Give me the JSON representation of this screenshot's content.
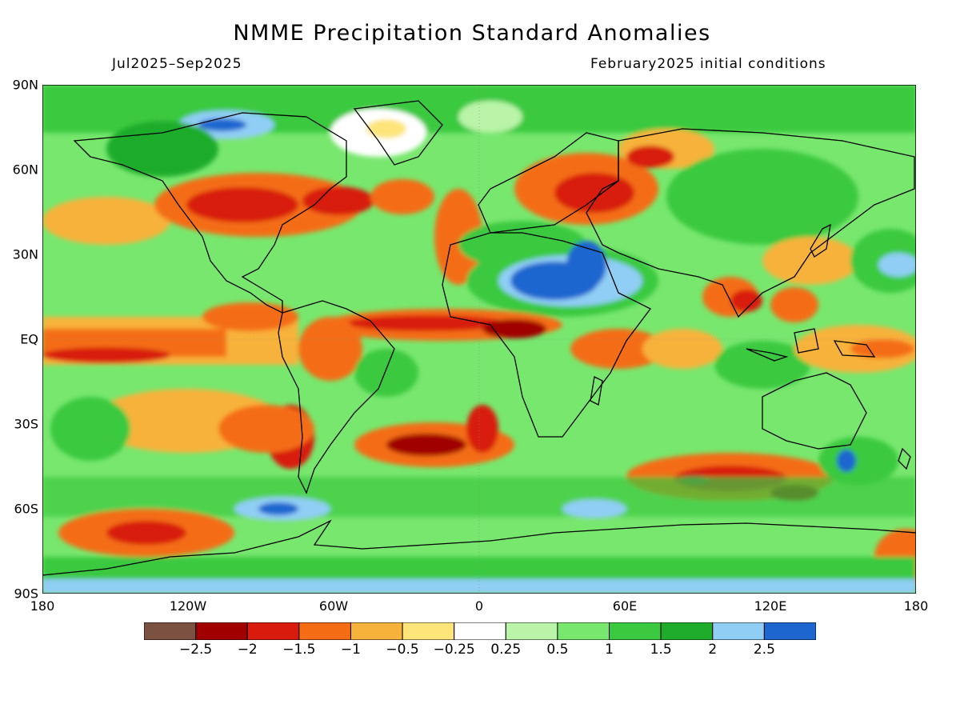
{
  "title": "NMME Precipitation Standard Anomalies",
  "period": "Jul2025–Sep2025",
  "init": "February2025 initial conditions",
  "lat_labels": [
    "90N",
    "60N",
    "30N",
    "EQ",
    "30S",
    "60S",
    "90S"
  ],
  "lon_labels": [
    "180",
    "120W",
    "60W",
    "0",
    "60E",
    "120E",
    "180"
  ],
  "colorbar": {
    "colors": [
      "#7b5142",
      "#a00000",
      "#d81b0c",
      "#f46d15",
      "#f7b23b",
      "#fde57a",
      "#ffffff",
      "#b9f4a9",
      "#78e76e",
      "#3bc940",
      "#1fac2a",
      "#90cef5",
      "#1d66cf"
    ],
    "labels": [
      "−2.5",
      "−2",
      "−1.5",
      "−1",
      "−0.5",
      "−0.25",
      "0.25",
      "0.5",
      "1",
      "1.5",
      "2",
      "2.5"
    ]
  },
  "colors": {
    "ocean_dry_strong": "#d81b0c",
    "dry_moderate": "#f46d15",
    "dry_weak": "#f7b23b",
    "neutral": "#ffffff",
    "wet_weak": "#78e76e",
    "wet_moderate": "#3bc940",
    "wet_strong": "#1d66cf"
  }
}
